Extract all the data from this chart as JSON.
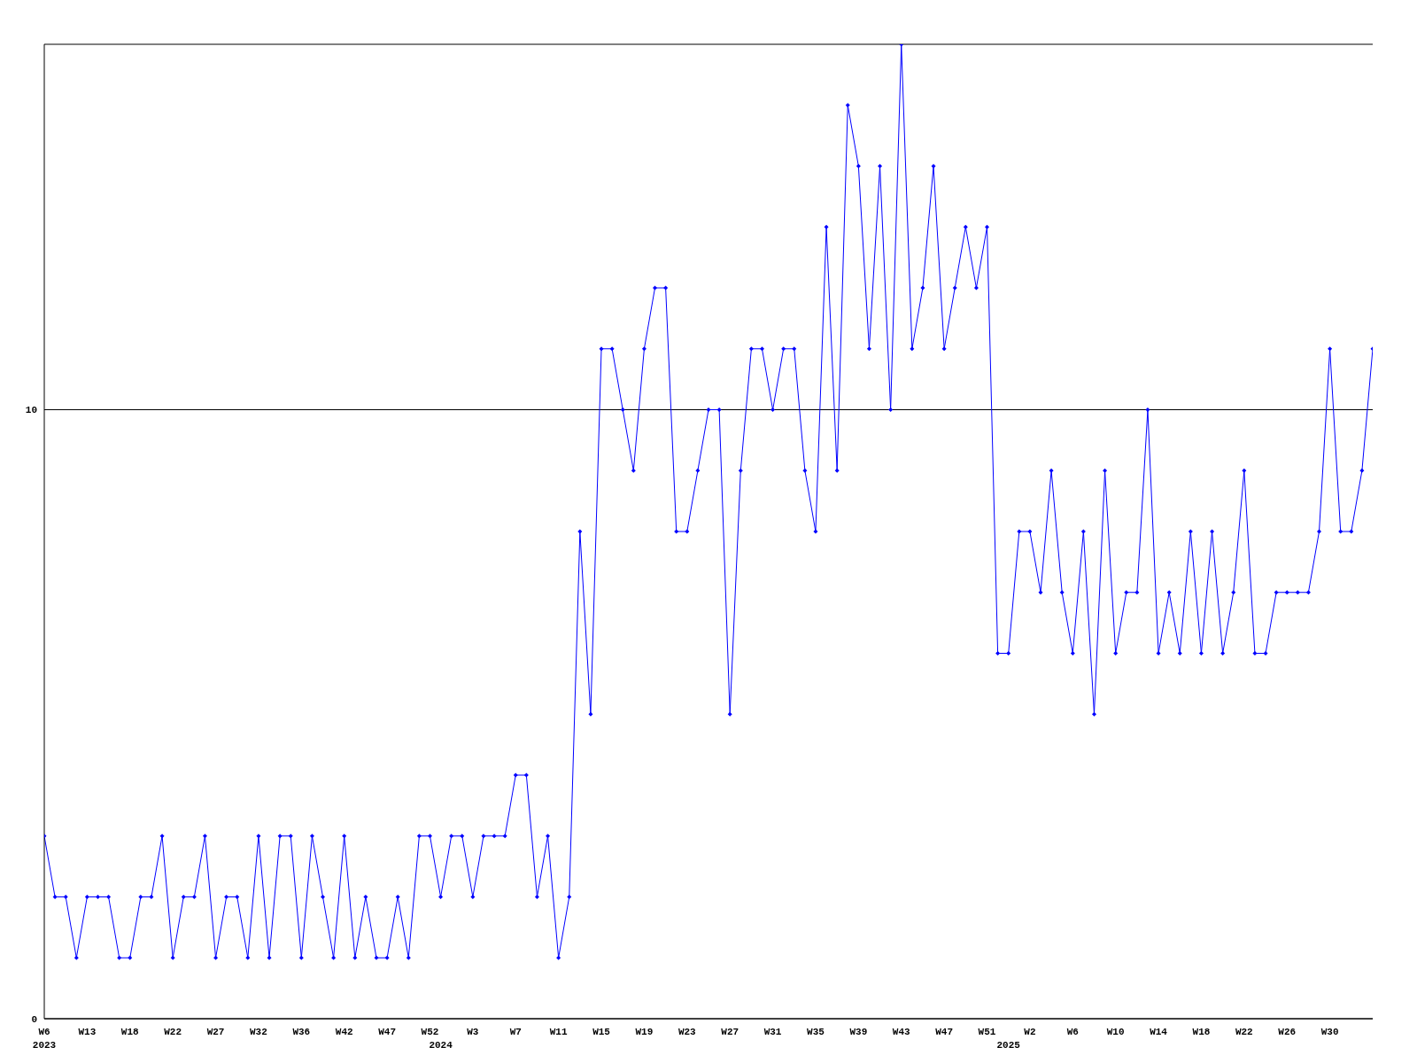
{
  "chart_data": {
    "type": "line",
    "categories": [
      "W6\n2023",
      null,
      null,
      null,
      "W13",
      null,
      null,
      null,
      "W18",
      null,
      null,
      null,
      "W22",
      null,
      null,
      null,
      "W27",
      null,
      null,
      null,
      "W32",
      null,
      null,
      null,
      "W36",
      null,
      null,
      null,
      "W42",
      null,
      null,
      null,
      "W47",
      null,
      null,
      null,
      "W52",
      "\n2024",
      null,
      null,
      "W3",
      null,
      null,
      null,
      "W7",
      null,
      null,
      null,
      "W11",
      null,
      null,
      null,
      "W15",
      null,
      null,
      null,
      "W19",
      null,
      null,
      null,
      "W23",
      null,
      null,
      null,
      "W27",
      null,
      null,
      null,
      "W31",
      null,
      null,
      null,
      "W35",
      null,
      null,
      null,
      "W39",
      null,
      null,
      null,
      "W43",
      null,
      null,
      null,
      "W47",
      null,
      null,
      null,
      "W51",
      null,
      "\n2025",
      null,
      "W2",
      null,
      null,
      null,
      "W6",
      null,
      null,
      null,
      "W10",
      null,
      null,
      null,
      "W14",
      null,
      null,
      null,
      "W18",
      null,
      null,
      null,
      "W22",
      null,
      null,
      null,
      "W26",
      null,
      null,
      null,
      "W30",
      null,
      null,
      null,
      null
    ],
    "values": [
      3,
      2,
      2,
      1,
      2,
      2,
      2,
      1,
      1,
      2,
      2,
      3,
      1,
      2,
      2,
      3,
      1,
      2,
      2,
      1,
      3,
      1,
      3,
      3,
      1,
      3,
      2,
      1,
      3,
      1,
      2,
      1,
      1,
      2,
      1,
      3,
      3,
      2,
      3,
      3,
      2,
      3,
      3,
      3,
      4,
      4,
      2,
      3,
      1,
      2,
      8,
      5,
      11,
      11,
      10,
      9,
      11,
      12,
      12,
      8,
      8,
      9,
      10,
      10,
      5,
      9,
      11,
      11,
      10,
      11,
      11,
      9,
      8,
      13,
      9,
      15,
      14,
      11,
      14,
      10,
      16,
      11,
      12,
      14,
      11,
      12,
      13,
      12,
      13,
      6,
      6,
      8,
      8,
      7,
      9,
      7,
      6,
      8,
      5,
      9,
      6,
      7,
      7,
      10,
      6,
      7,
      6,
      8,
      6,
      8,
      6,
      7,
      9,
      6,
      6,
      7,
      7,
      7,
      7,
      8,
      11,
      8,
      8,
      9,
      11
    ],
    "color": "#0000ff",
    "ylim": [
      0,
      16
    ],
    "yticks": [
      0,
      10
    ],
    "grid": "y",
    "marker": "diamond"
  }
}
